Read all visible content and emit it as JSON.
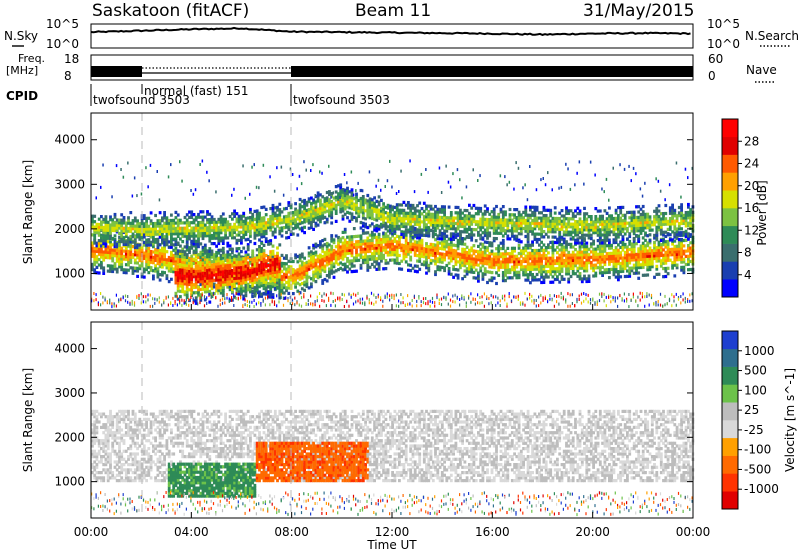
{
  "header": {
    "station": "Saskatoon (fitACF)",
    "beam": "Beam 11",
    "date": "31/May/2015"
  },
  "strip": {
    "nsky_label": "N.Sky",
    "nsearch_label": "N.Search",
    "freq_label_1": "Freq.",
    "freq_label_2": "[MHz]",
    "nave_label": "Nave",
    "cpid_label": "CPID",
    "noise_left_ticks": [
      "10^5",
      "10^0"
    ],
    "noise_right_ticks": [
      "10^5",
      "10^0"
    ],
    "freq_ticks": [
      "18",
      "8"
    ],
    "nave_ticks": [
      "60",
      "0"
    ]
  },
  "cpid_segments": [
    {
      "label": "twofsound 3503",
      "start": "00:00",
      "end": "02:00"
    },
    {
      "label": "normal (fast) 151",
      "start": "02:00",
      "end": "08:00"
    },
    {
      "label": "twofsound 3503",
      "start": "08:00",
      "end": "24:00"
    }
  ],
  "colors": {
    "power_scale": [
      "#0000ff",
      "#1a3fb0",
      "#3a6e6e",
      "#2e8b57",
      "#7cc242",
      "#d6e000",
      "#ffa000",
      "#ff5a00",
      "#e00000",
      "#ff0000"
    ],
    "velocity_scale": [
      "#1e3fcf",
      "#2e6e8e",
      "#2e8b57",
      "#6cc24a",
      "#bdbdbd",
      "#d9d9d9",
      "#ffa000",
      "#ff6a00",
      "#ff3300",
      "#e00000"
    ],
    "noise_line": "#000000",
    "grey_scatter": "#bebebe"
  },
  "chart_data": [
    {
      "type": "line",
      "panel": "N.Sky / N.Search noise",
      "x_label": "",
      "x_range": [
        "00:00",
        "24:00"
      ],
      "ylim_log10": [
        0,
        5
      ],
      "series": [
        {
          "name": "N.Sky",
          "x_hours": [
            0,
            2,
            4,
            6,
            8,
            10,
            12,
            14,
            16,
            18,
            20,
            22,
            24
          ],
          "y_log10": [
            3.3,
            3.6,
            3.9,
            4.1,
            3.4,
            3.3,
            3.2,
            3.1,
            3.0,
            2.8,
            3.0,
            3.1,
            3.0
          ]
        }
      ]
    },
    {
      "type": "line",
      "panel": "Freq. / Nave",
      "x_range": [
        "00:00",
        "24:00"
      ],
      "ylim_freq": [
        8,
        18
      ],
      "ylim_nave": [
        0,
        60
      ],
      "series": [
        {
          "name": "Freq.",
          "x_hours": [
            0,
            2,
            8,
            24
          ],
          "y": [
            12,
            12,
            12,
            12
          ]
        }
      ]
    },
    {
      "type": "heatmap",
      "panel": "Power",
      "title": "",
      "xlabel": "Time UT",
      "ylabel": "Slant Range [km]",
      "x_ticks": [
        "00:00",
        "04:00",
        "08:00",
        "12:00",
        "16:00",
        "20:00",
        "00:00"
      ],
      "y_ticks": [
        1000,
        2000,
        3000,
        4000
      ],
      "ylim": [
        180,
        4600
      ],
      "colorbar_label": "Power [dB]",
      "colorbar_ticks": [
        4,
        8,
        12,
        16,
        20,
        24,
        28
      ],
      "bands": [
        {
          "t": [
            0,
            2,
            3,
            6,
            8,
            10,
            12,
            16,
            20,
            24
          ],
          "center_km": [
            1500,
            1400,
            1300,
            1000,
            900,
            1500,
            1600,
            1250,
            1300,
            1450
          ],
          "width_km": 500,
          "peak_db": 24
        },
        {
          "t": [
            0,
            2,
            6,
            8,
            10,
            12,
            16,
            20,
            24
          ],
          "center_km": [
            2000,
            1950,
            2000,
            2200,
            2600,
            2200,
            2100,
            2050,
            2150
          ],
          "width_km": 400,
          "peak_db": 18
        },
        {
          "t": [
            3.3,
            4,
            5,
            6,
            7,
            7.5
          ],
          "center_km": [
            950,
            900,
            950,
            1000,
            1150,
            1200
          ],
          "width_km": 600,
          "peak_db": 30
        }
      ]
    },
    {
      "type": "heatmap",
      "panel": "Velocity",
      "xlabel": "Time UT",
      "ylabel": "Slant Range [km]",
      "x_ticks": [
        "00:00",
        "04:00",
        "08:00",
        "12:00",
        "16:00",
        "20:00",
        "00:00"
      ],
      "y_ticks": [
        1000,
        2000,
        3000,
        4000
      ],
      "ylim": [
        180,
        4600
      ],
      "colorbar_label": "Velocity [m s^-1]",
      "colorbar_ticks": [
        "1000",
        "500",
        "100",
        "25",
        "-25",
        "-100",
        "-500",
        "-1000"
      ],
      "regions": [
        {
          "name": "ground scatter",
          "t_range": [
            0,
            24
          ],
          "km_range": [
            1000,
            2600
          ],
          "velocity": 0
        },
        {
          "name": "positive",
          "t_range": [
            3.0,
            6.5
          ],
          "km_range": [
            650,
            1400
          ],
          "velocity": 150
        },
        {
          "name": "negative",
          "t_range": [
            6.5,
            11.0
          ],
          "km_range": [
            1000,
            1900
          ],
          "velocity": -400
        }
      ]
    }
  ]
}
